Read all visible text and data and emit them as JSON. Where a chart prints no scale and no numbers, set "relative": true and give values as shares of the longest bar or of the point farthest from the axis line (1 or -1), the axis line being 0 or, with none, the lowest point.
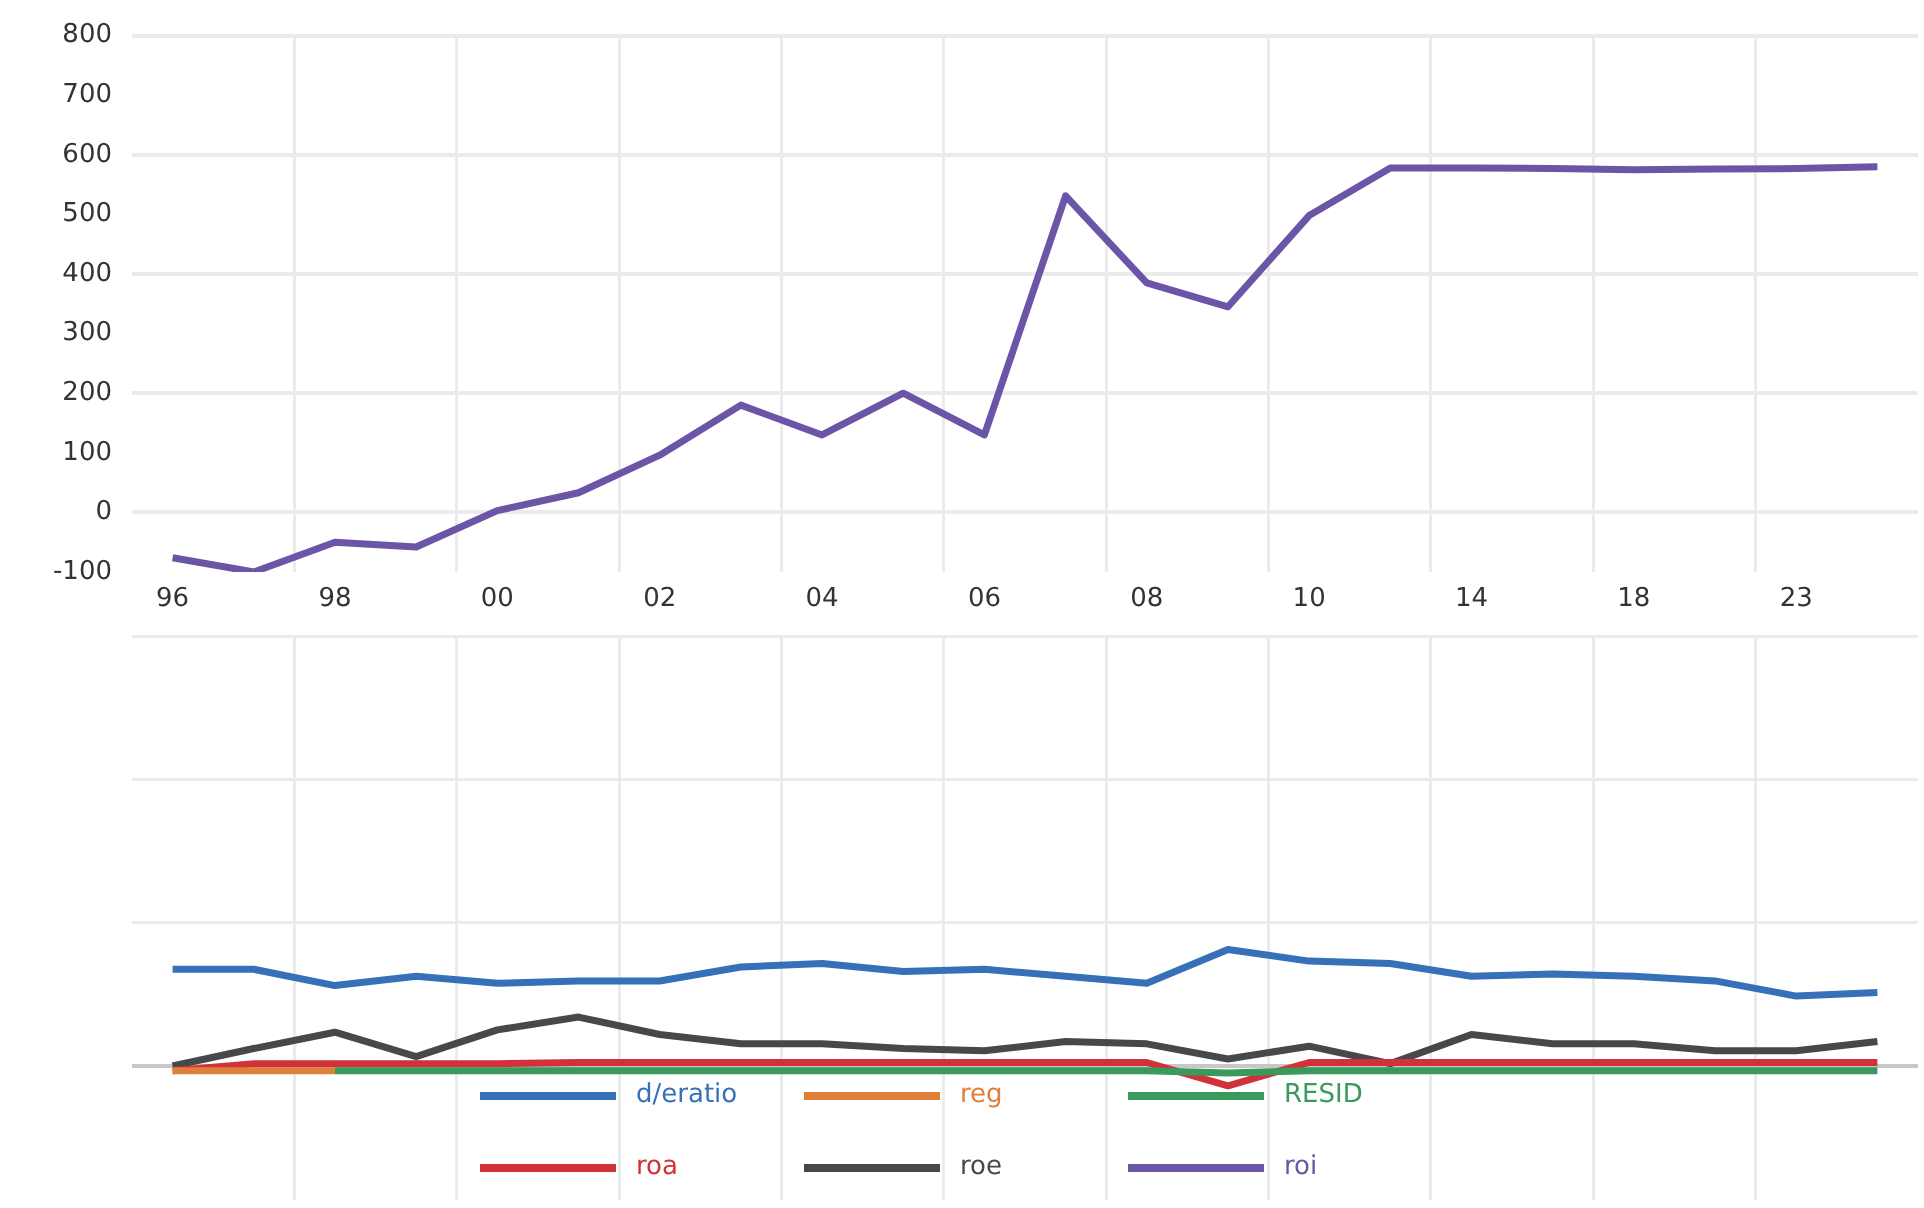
{
  "chart_data": [
    {
      "type": "line",
      "categories": [
        "96",
        null,
        "98",
        null,
        "00",
        null,
        "02",
        null,
        "04",
        null,
        "06",
        null,
        "08",
        null,
        "10",
        null,
        "14",
        null,
        "18",
        null,
        "23",
        null
      ],
      "ylim": [
        -100,
        800
      ],
      "yticks": [
        -100,
        0,
        100,
        200,
        300,
        400,
        500,
        600,
        700,
        800
      ],
      "grid": true,
      "legend": "bottom",
      "series": [
        {
          "name": "roi",
          "color": "#6a55a6",
          "values": [
            -76,
            -100,
            -50,
            -58,
            3,
            33,
            96,
            180,
            130,
            200,
            130,
            531,
            385,
            345,
            498,
            578,
            578,
            577,
            575,
            576,
            577,
            580
          ]
        }
      ]
    },
    {
      "type": "line",
      "categories": [
        null,
        null,
        null,
        null,
        null,
        null,
        null,
        null,
        null,
        null,
        null,
        null,
        null,
        null,
        null,
        null,
        null,
        null,
        null,
        null,
        null,
        null
      ],
      "relative": true,
      "tick_labels": false,
      "grid": true,
      "legend": "bottom",
      "series": [
        {
          "name": "d/eratio",
          "color": "#3570b8",
          "values": [
            0.83,
            0.83,
            0.69,
            0.77,
            0.71,
            0.73,
            0.73,
            0.85,
            0.88,
            0.81,
            0.83,
            0.77,
            0.71,
            1,
            0.9,
            0.88,
            0.77,
            0.79,
            0.77,
            0.73,
            0.6,
            0.63
          ]
        },
        {
          "name": "reg",
          "color": "#e07f3a",
          "values": [
            -0.04,
            -0.04,
            -0.04,
            null,
            null,
            null,
            null,
            null,
            null,
            null,
            null,
            null,
            null,
            null,
            null,
            null,
            null,
            null,
            null,
            null,
            null,
            null
          ]
        },
        {
          "name": "RESID",
          "color": "#3a9a5b",
          "values": [
            null,
            null,
            -0.04,
            -0.04,
            -0.04,
            -0.04,
            -0.04,
            -0.04,
            -0.04,
            -0.04,
            -0.04,
            -0.04,
            -0.04,
            -0.06,
            -0.04,
            -0.04,
            -0.04,
            -0.04,
            -0.04,
            -0.04,
            -0.04,
            -0.04
          ]
        },
        {
          "name": "roa",
          "color": "#d13239",
          "values": [
            -0.04,
            0.02,
            0.02,
            0.02,
            0.02,
            0.03,
            0.03,
            0.03,
            0.03,
            0.03,
            0.03,
            0.03,
            0.03,
            -0.17,
            0.03,
            0.03,
            0.03,
            0.03,
            0.03,
            0.03,
            0.03,
            0.03
          ]
        },
        {
          "name": "roe",
          "color": "#45494c",
          "values": [
            0,
            0.15,
            0.29,
            0.08,
            0.31,
            0.42,
            0.27,
            0.19,
            0.19,
            0.15,
            0.13,
            0.21,
            0.19,
            0.06,
            0.17,
            0.02,
            0.27,
            0.19,
            0.19,
            0.13,
            0.13,
            0.21
          ]
        }
      ]
    }
  ]
}
